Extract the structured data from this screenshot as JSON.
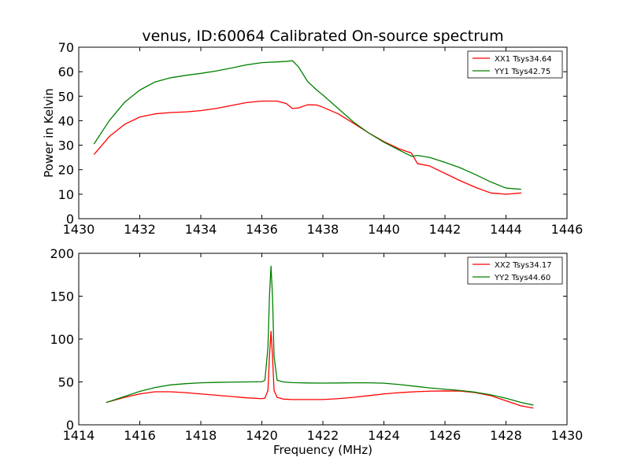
{
  "chart_data": [
    {
      "type": "line",
      "title": "venus, ID:60064 Calibrated On-source spectrum",
      "xlabel": "",
      "ylabel": "Power in Kelvin",
      "xlim": [
        1430,
        1446
      ],
      "ylim": [
        0,
        70
      ],
      "xticks": [
        1430,
        1432,
        1434,
        1436,
        1438,
        1440,
        1442,
        1444,
        1446
      ],
      "yticks": [
        0,
        10,
        20,
        30,
        40,
        50,
        60,
        70
      ],
      "legend_position": "top-right",
      "grid": false,
      "series": [
        {
          "name": "XX1 Tsys34.64",
          "color": "#ff0000",
          "x": [
            1430.5,
            1431.0,
            1431.5,
            1432.0,
            1432.5,
            1433.0,
            1433.5,
            1434.0,
            1434.5,
            1435.0,
            1435.5,
            1436.0,
            1436.5,
            1436.8,
            1437.0,
            1437.2,
            1437.5,
            1437.8,
            1438.0,
            1438.5,
            1439.0,
            1439.5,
            1440.0,
            1440.5,
            1440.9,
            1441.1,
            1441.5,
            1442.0,
            1442.5,
            1443.0,
            1443.5,
            1444.0,
            1444.5
          ],
          "y": [
            26.2,
            33.5,
            38.5,
            41.5,
            42.8,
            43.3,
            43.6,
            44.1,
            45.0,
            46.2,
            47.4,
            48.0,
            48.0,
            47.0,
            45.0,
            45.2,
            46.5,
            46.4,
            45.5,
            42.8,
            39.0,
            35.0,
            31.5,
            28.5,
            26.8,
            22.5,
            21.5,
            18.5,
            15.5,
            12.8,
            10.5,
            10.0,
            10.5
          ]
        },
        {
          "name": "YY1 Tsys42.75",
          "color": "#008000",
          "x": [
            1430.5,
            1431.0,
            1431.5,
            1432.0,
            1432.5,
            1433.0,
            1433.5,
            1434.0,
            1434.5,
            1435.0,
            1435.5,
            1436.0,
            1436.5,
            1436.8,
            1437.0,
            1437.2,
            1437.5,
            1437.8,
            1438.0,
            1438.5,
            1439.0,
            1439.5,
            1440.0,
            1440.5,
            1440.9,
            1441.1,
            1441.5,
            1442.0,
            1442.5,
            1443.0,
            1443.5,
            1444.0,
            1444.5
          ],
          "y": [
            30.5,
            40.0,
            47.5,
            52.5,
            55.8,
            57.5,
            58.5,
            59.3,
            60.3,
            61.5,
            62.8,
            63.7,
            64.0,
            64.2,
            64.5,
            62.0,
            56.0,
            52.5,
            50.5,
            45.0,
            39.5,
            35.0,
            31.2,
            28.0,
            25.5,
            25.8,
            25.0,
            23.0,
            20.8,
            18.0,
            15.0,
            12.5,
            12.0
          ]
        }
      ]
    },
    {
      "type": "line",
      "title": "",
      "xlabel": "Frequency (MHz)",
      "ylabel": "",
      "xlim": [
        1414,
        1430
      ],
      "ylim": [
        0,
        200
      ],
      "xticks": [
        1414,
        1416,
        1418,
        1420,
        1422,
        1424,
        1426,
        1428,
        1430
      ],
      "yticks": [
        0,
        50,
        100,
        150,
        200
      ],
      "legend_position": "top-right",
      "grid": false,
      "series": [
        {
          "name": "XX2 Tsys34.17",
          "color": "#ff0000",
          "x": [
            1414.9,
            1415.5,
            1416.0,
            1416.5,
            1417.0,
            1417.5,
            1418.0,
            1418.5,
            1419.0,
            1419.5,
            1420.0,
            1420.1,
            1420.2,
            1420.25,
            1420.3,
            1420.35,
            1420.4,
            1420.5,
            1420.7,
            1421.0,
            1421.5,
            1422.0,
            1422.5,
            1423.0,
            1423.5,
            1424.0,
            1424.5,
            1425.0,
            1425.5,
            1426.0,
            1426.5,
            1427.0,
            1427.5,
            1428.0,
            1428.5,
            1428.9
          ],
          "y": [
            26,
            32,
            36,
            38.5,
            38.5,
            37.5,
            36,
            34.5,
            33,
            31.5,
            30.5,
            31,
            40,
            80,
            109,
            80,
            40,
            32,
            30,
            29.5,
            29.5,
            29.5,
            30.5,
            32,
            34,
            36,
            37.5,
            38.5,
            39.2,
            39.5,
            39.3,
            37.5,
            34,
            28,
            22,
            19.5
          ]
        },
        {
          "name": "YY2 Tsys44.60",
          "color": "#008000",
          "x": [
            1414.9,
            1415.5,
            1416.0,
            1416.5,
            1417.0,
            1417.5,
            1418.0,
            1418.5,
            1419.0,
            1419.5,
            1420.0,
            1420.1,
            1420.2,
            1420.25,
            1420.3,
            1420.35,
            1420.4,
            1420.5,
            1420.7,
            1421.0,
            1421.5,
            1422.0,
            1422.5,
            1423.0,
            1423.5,
            1424.0,
            1424.5,
            1425.0,
            1425.5,
            1426.0,
            1426.5,
            1427.0,
            1427.5,
            1428.0,
            1428.5,
            1428.9
          ],
          "y": [
            26,
            33,
            39,
            43.5,
            46.5,
            48,
            49,
            49.5,
            49.8,
            50,
            50.2,
            52,
            90,
            150,
            185,
            150,
            80,
            52,
            50,
            49.2,
            48.8,
            48.6,
            48.8,
            49,
            49,
            48.5,
            47,
            45,
            43,
            41.5,
            40,
            38,
            35,
            31,
            26,
            23
          ]
        }
      ]
    }
  ]
}
